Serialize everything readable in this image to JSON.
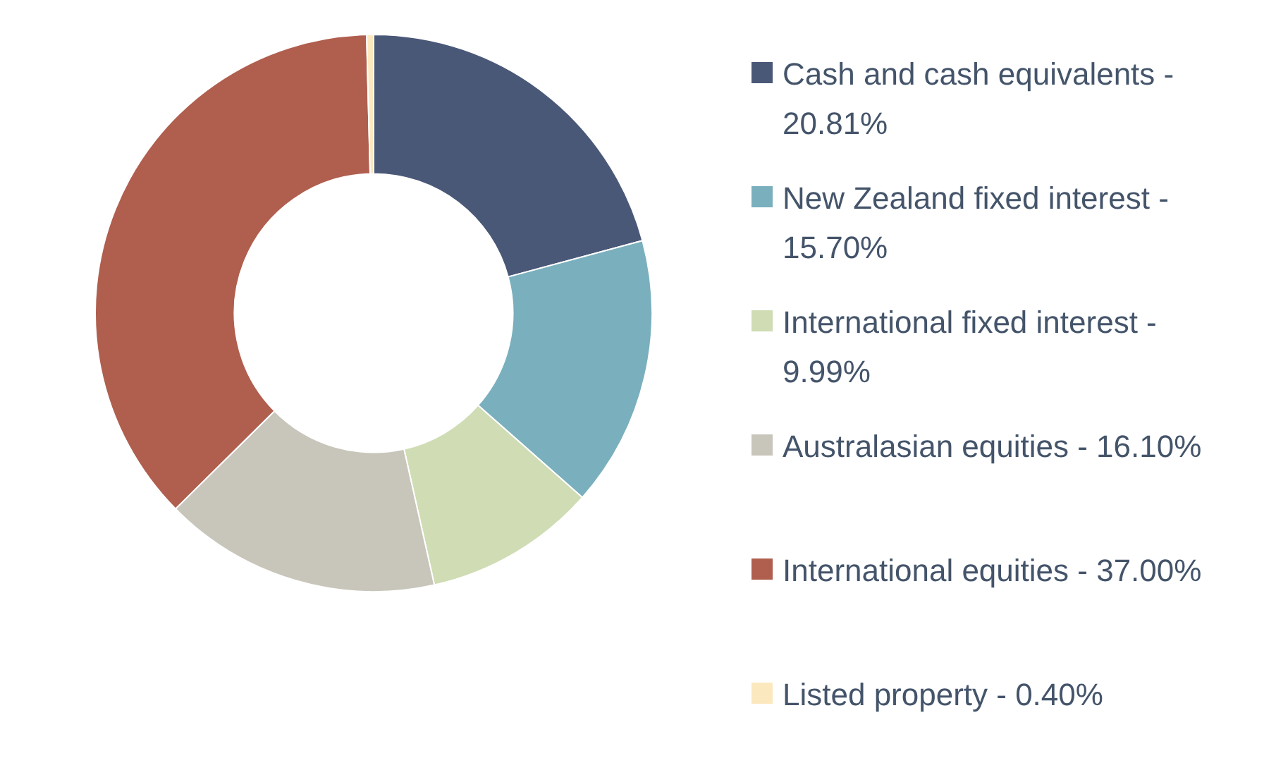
{
  "chart_data": {
    "type": "donut",
    "categories": [
      "Cash and cash equivalents - 20.81%",
      "New Zealand fixed interest - 15.70%",
      "International fixed interest - 9.99%",
      "Australasian equities - 16.10%",
      "International equities - 37.00%",
      "Listed property - 0.40%"
    ],
    "values": [
      20.81,
      15.7,
      9.99,
      16.1,
      37.0,
      0.4
    ],
    "colors": [
      "#4a5878",
      "#7aafbd",
      "#cfdcb4",
      "#c8c5ba",
      "#b05e4e",
      "#fbe8bf"
    ],
    "legend": "right"
  }
}
